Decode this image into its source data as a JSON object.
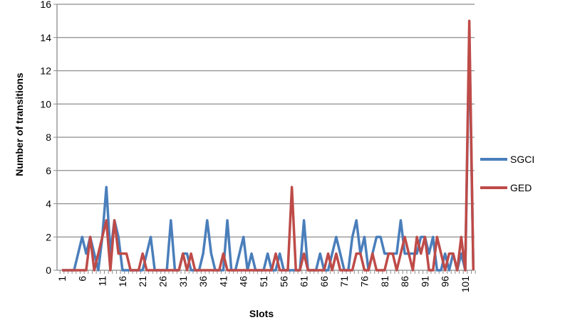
{
  "chart_data": {
    "type": "line",
    "title": "",
    "xlabel": "Slots",
    "ylabel": "Number of transitions",
    "ylim": [
      0,
      16
    ],
    "yticks": [
      0,
      2,
      4,
      6,
      8,
      10,
      12,
      14,
      16
    ],
    "xticks": [
      1,
      6,
      11,
      16,
      21,
      26,
      31,
      36,
      41,
      46,
      51,
      56,
      61,
      66,
      71,
      76,
      81,
      86,
      91,
      96,
      101
    ],
    "x_range": [
      1,
      103
    ],
    "grid": "horizontal",
    "legend_position": "right",
    "series": [
      {
        "name": "SGCI",
        "color": "#4a7ebb",
        "values": [
          0,
          0,
          0,
          0,
          1,
          2,
          1,
          2,
          1,
          0,
          2,
          5,
          1,
          3,
          2,
          0,
          0,
          0,
          0,
          0,
          0,
          1,
          2,
          0,
          0,
          0,
          0,
          3,
          0,
          0,
          1,
          1,
          0,
          0,
          0,
          1,
          3,
          1,
          0,
          0,
          0,
          3,
          0,
          0,
          1,
          2,
          0,
          1,
          0,
          0,
          0,
          1,
          0,
          0,
          1,
          0,
          0,
          0,
          0,
          0,
          3,
          0,
          0,
          0,
          1,
          0,
          0,
          1,
          2,
          1,
          0,
          0,
          2,
          3,
          1,
          2,
          0,
          1,
          2,
          2,
          1,
          1,
          1,
          1,
          3,
          1,
          1,
          1,
          1,
          2,
          2,
          1,
          2,
          0,
          0,
          1,
          0,
          1,
          0,
          1,
          0,
          14,
          0
        ]
      },
      {
        "name": "GED",
        "color": "#be4b48",
        "values": [
          0,
          0,
          0,
          0,
          0,
          0,
          0,
          2,
          0,
          1,
          2,
          3,
          0,
          3,
          1,
          1,
          1,
          0,
          0,
          0,
          1,
          0,
          0,
          0,
          0,
          0,
          0,
          0,
          0,
          0,
          1,
          0,
          1,
          0,
          0,
          0,
          0,
          0,
          0,
          0,
          1,
          0,
          0,
          0,
          0,
          0,
          0,
          0,
          0,
          0,
          0,
          0,
          0,
          1,
          0,
          0,
          0,
          5,
          0,
          0,
          1,
          0,
          0,
          0,
          0,
          0,
          1,
          0,
          1,
          0,
          0,
          0,
          0,
          1,
          1,
          0,
          0,
          1,
          0,
          0,
          0,
          1,
          1,
          0,
          1,
          2,
          1,
          0,
          2,
          1,
          2,
          0,
          0,
          2,
          1,
          0,
          1,
          1,
          0,
          2,
          0,
          15,
          0
        ]
      }
    ]
  }
}
